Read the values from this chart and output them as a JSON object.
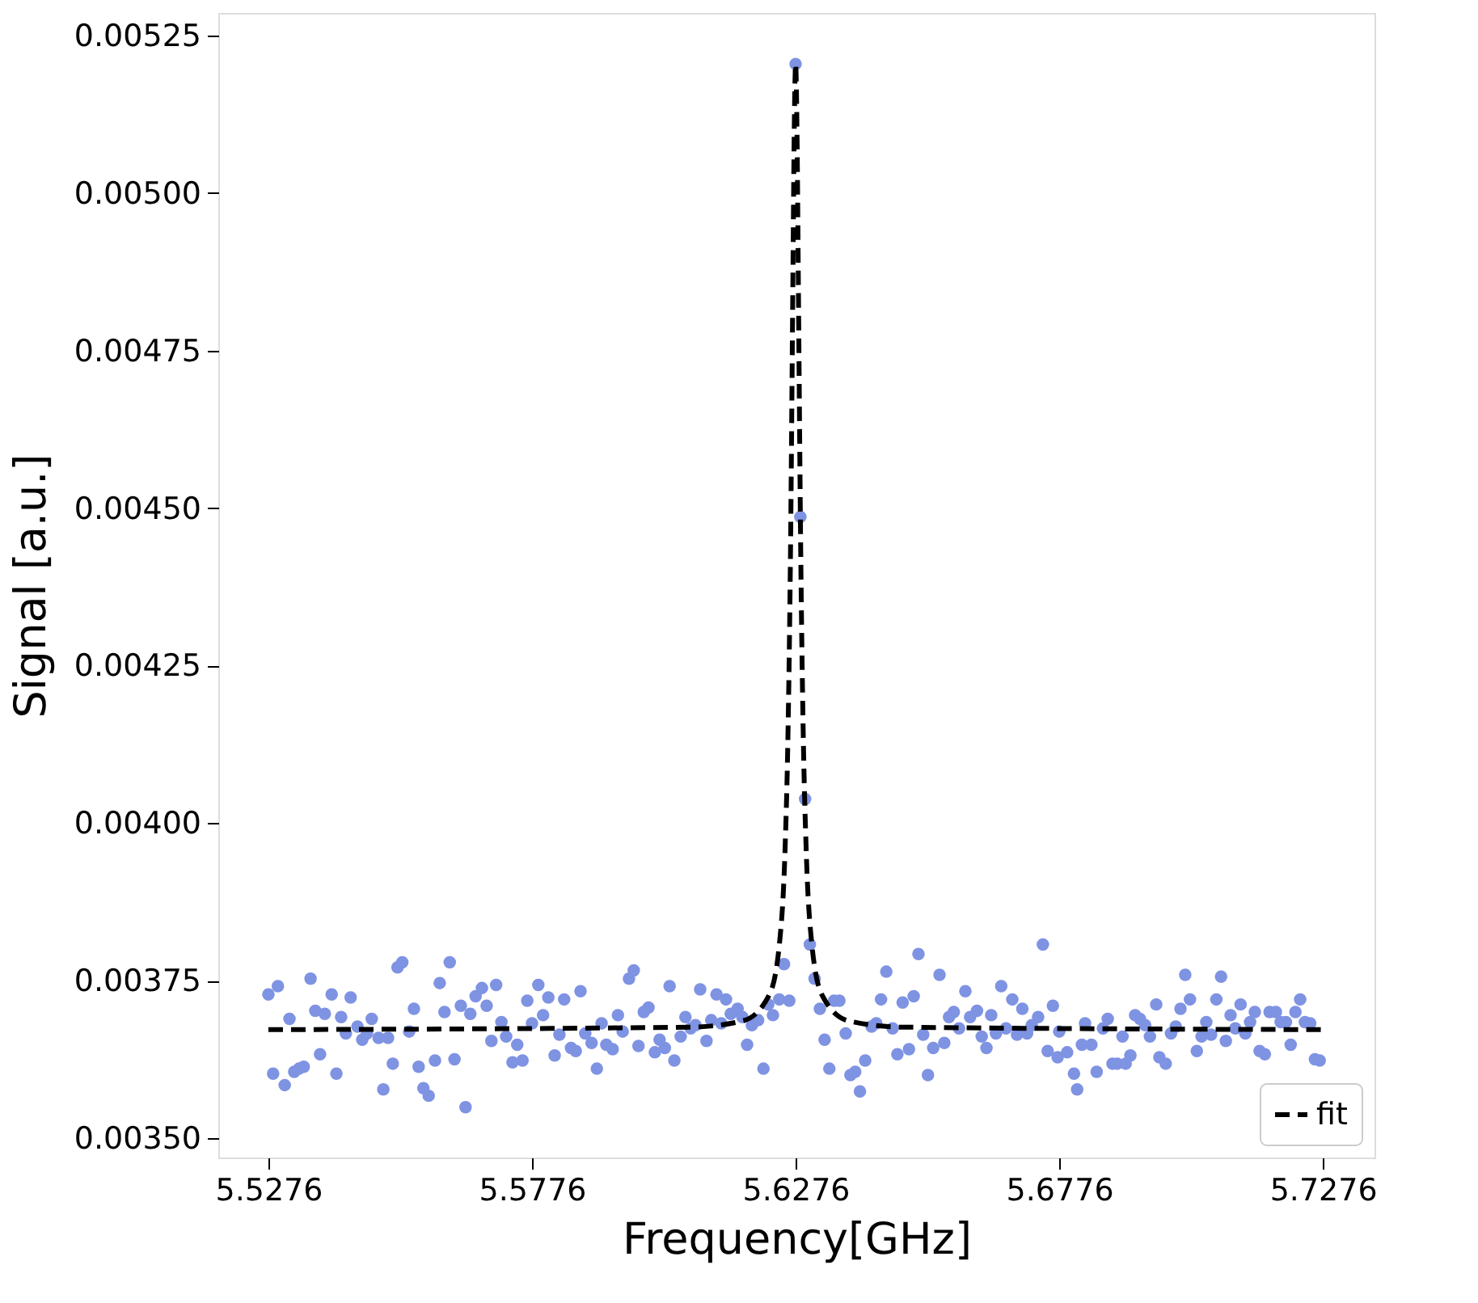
{
  "chart_data": {
    "type": "scatter",
    "xlabel": "Frequency[GHz]",
    "ylabel": "Signal [a.u.]",
    "xlim": [
      5.5181,
      5.7374
    ],
    "ylim": [
      0.003469,
      0.005286
    ],
    "xticks": [
      {
        "value": 5.5276,
        "label": "5.5276"
      },
      {
        "value": 5.5776,
        "label": "5.5776"
      },
      {
        "value": 5.6276,
        "label": "5.6276"
      },
      {
        "value": 5.6776,
        "label": "5.6776"
      },
      {
        "value": 5.7276,
        "label": "5.7276"
      }
    ],
    "yticks": [
      {
        "value": 0.0035,
        "label": "0.00350"
      },
      {
        "value": 0.00375,
        "label": "0.00375"
      },
      {
        "value": 0.004,
        "label": "0.00400"
      },
      {
        "value": 0.00425,
        "label": "0.00425"
      },
      {
        "value": 0.0045,
        "label": "0.00450"
      },
      {
        "value": 0.00475,
        "label": "0.00475"
      },
      {
        "value": 0.005,
        "label": "0.00500"
      },
      {
        "value": 0.00525,
        "label": "0.00525"
      }
    ],
    "grid": false,
    "legend": "bottom right",
    "marker": "circle",
    "series": [
      {
        "color": "#7f93e3",
        "x": [
          5.5276,
          5.5285,
          5.5294,
          5.5307,
          5.5316,
          5.5325,
          5.5334,
          5.5343,
          5.5356,
          5.5365,
          5.5374,
          5.5383,
          5.5396,
          5.5405,
          5.5414,
          5.5423,
          5.5432,
          5.5445,
          5.5454,
          5.5463,
          5.5472,
          5.5485,
          5.5494,
          5.5503,
          5.5512,
          5.5521,
          5.553,
          5.5543,
          5.5552,
          5.5561,
          5.557,
          5.558,
          5.5592,
          5.5601,
          5.561,
          5.562,
          5.5629,
          5.5641,
          5.565,
          5.5659,
          5.5669,
          5.5681,
          5.569,
          5.5699,
          5.5708,
          5.5718,
          5.5727,
          5.5739,
          5.5748,
          5.5758,
          5.5767,
          5.5776,
          5.5788,
          5.5797,
          5.5807,
          5.5819,
          5.5828,
          5.5837,
          5.585,
          5.5859,
          5.5868,
          5.5877,
          5.5889,
          5.5899,
          5.5908,
          5.5917,
          5.5929,
          5.5939,
          5.5948,
          5.596,
          5.5969,
          5.5978,
          5.5988,
          5.5997,
          5.6009,
          5.6018,
          5.6028,
          5.6037,
          5.6046,
          5.6058,
          5.6067,
          5.6077,
          5.6086,
          5.6095,
          5.6107,
          5.6116,
          5.6126,
          5.6135,
          5.6144,
          5.6153,
          5.6166,
          5.6175,
          5.6184,
          5.6193,
          5.6205,
          5.6215,
          5.6224,
          5.6233,
          5.6245,
          5.6254,
          5.6264,
          5.6276,
          5.6285,
          5.6294,
          5.6303,
          5.6312,
          5.6322,
          5.6331,
          5.634,
          5.6349,
          5.6359,
          5.6371,
          5.638,
          5.6389,
          5.6398,
          5.6408,
          5.642,
          5.6429,
          5.6438,
          5.6448,
          5.646,
          5.6469,
          5.6479,
          5.6491,
          5.65,
          5.6509,
          5.6518,
          5.6527,
          5.6537,
          5.6549,
          5.6558,
          5.6567,
          5.6576,
          5.6586,
          5.6598,
          5.6607,
          5.662,
          5.6629,
          5.6638,
          5.6647,
          5.6656,
          5.6666,
          5.6675,
          5.6687,
          5.6696,
          5.6706,
          5.6715,
          5.6724,
          5.6736,
          5.6745,
          5.6754,
          5.6764,
          5.6773,
          5.6776,
          5.6791,
          5.6804,
          5.681,
          5.6819,
          5.6825,
          5.6837,
          5.6847,
          5.6859,
          5.6868,
          5.6877,
          5.6886,
          5.6896,
          5.6902,
          5.6911,
          5.692,
          5.6929,
          5.6939,
          5.6948,
          5.696,
          5.6966,
          5.6978,
          5.6988,
          5.6997,
          5.7006,
          5.7015,
          5.7024,
          5.7037,
          5.7046,
          5.7055,
          5.7064,
          5.7074,
          5.7083,
          5.7092,
          5.7101,
          5.711,
          5.712,
          5.7129,
          5.7138,
          5.7147,
          5.7156,
          5.7166,
          5.7175,
          5.7187,
          5.7196,
          5.7206,
          5.7215,
          5.7224,
          5.7233,
          5.7242,
          5.7252,
          5.7261,
          5.727
        ],
        "values": [
          0.003728,
          0.003602,
          0.003741,
          0.003584,
          0.003689,
          0.003605,
          0.00361,
          0.003613,
          0.003753,
          0.003702,
          0.003633,
          0.003697,
          0.003728,
          0.003602,
          0.003692,
          0.003666,
          0.003723,
          0.003677,
          0.003656,
          0.003666,
          0.003689,
          0.003659,
          0.003577,
          0.003659,
          0.003618,
          0.003771,
          0.003779,
          0.003669,
          0.003705,
          0.003613,
          0.003579,
          0.003567,
          0.003623,
          0.003746,
          0.0037,
          0.003779,
          0.003625,
          0.00371,
          0.003549,
          0.003697,
          0.003725,
          0.003738,
          0.00371,
          0.003654,
          0.003743,
          0.003684,
          0.003661,
          0.00362,
          0.003648,
          0.003623,
          0.003718,
          0.003682,
          0.003743,
          0.003695,
          0.003723,
          0.003631,
          0.003664,
          0.00372,
          0.003643,
          0.003638,
          0.003733,
          0.003666,
          0.003651,
          0.00361,
          0.003682,
          0.003648,
          0.003641,
          0.003695,
          0.003669,
          0.003753,
          0.003766,
          0.003646,
          0.0037,
          0.003707,
          0.003636,
          0.003656,
          0.003643,
          0.003741,
          0.003623,
          0.003661,
          0.003692,
          0.003674,
          0.003679,
          0.003736,
          0.003654,
          0.003687,
          0.003728,
          0.003682,
          0.00372,
          0.003697,
          0.003705,
          0.003692,
          0.003648,
          0.003679,
          0.003687,
          0.00361,
          0.003712,
          0.003695,
          0.00372,
          0.003776,
          0.003718,
          0.005205,
          0.004486,
          0.004038,
          0.003807,
          0.003753,
          0.003705,
          0.003656,
          0.00361,
          0.003718,
          0.003718,
          0.003666,
          0.0036,
          0.003605,
          0.003574,
          0.003623,
          0.003677,
          0.003682,
          0.00372,
          0.003764,
          0.003674,
          0.003633,
          0.003715,
          0.003641,
          0.003725,
          0.003792,
          0.003664,
          0.0036,
          0.003643,
          0.003759,
          0.003651,
          0.003692,
          0.0037,
          0.003674,
          0.003733,
          0.003692,
          0.003702,
          0.003661,
          0.003643,
          0.003695,
          0.003666,
          0.003741,
          0.003674,
          0.00372,
          0.003664,
          0.003705,
          0.003666,
          0.003679,
          0.003692,
          0.003807,
          0.003638,
          0.00371,
          0.003628,
          0.003669,
          0.003636,
          0.003602,
          0.003577,
          0.003648,
          0.003682,
          0.003648,
          0.003605,
          0.003674,
          0.003689,
          0.003618,
          0.003618,
          0.003661,
          0.003618,
          0.003631,
          0.003695,
          0.003689,
          0.003679,
          0.003661,
          0.003712,
          0.003628,
          0.003618,
          0.003666,
          0.003677,
          0.003705,
          0.003759,
          0.00372,
          0.003638,
          0.003661,
          0.003684,
          0.003664,
          0.00372,
          0.003756,
          0.003654,
          0.003695,
          0.003674,
          0.003712,
          0.003666,
          0.003684,
          0.0037,
          0.003638,
          0.003633,
          0.0037,
          0.0037,
          0.003684,
          0.003684,
          0.003648,
          0.0037,
          0.00372,
          0.003684,
          0.003682,
          0.003625,
          0.003623
        ]
      },
      {
        "type": "line",
        "name": "fit",
        "color": "#000000",
        "line_style": "dashed",
        "marker": "none",
        "x": [
          5.5276,
          5.6076,
          5.6176,
          5.6226,
          5.6246,
          5.6256,
          5.6261,
          5.6266,
          5.6271,
          5.6273,
          5.6276,
          5.6279,
          5.6281,
          5.6286,
          5.6291,
          5.6296,
          5.6306,
          5.6326,
          5.6376,
          5.6476,
          5.7276
        ],
        "values": [
          0.003672,
          0.003676,
          0.003686,
          0.003727,
          0.003814,
          0.003959,
          0.004118,
          0.004407,
          0.004878,
          0.005069,
          0.005205,
          0.005069,
          0.004878,
          0.004407,
          0.004118,
          0.003959,
          0.003814,
          0.003727,
          0.003686,
          0.003676,
          0.003672
        ]
      }
    ]
  }
}
